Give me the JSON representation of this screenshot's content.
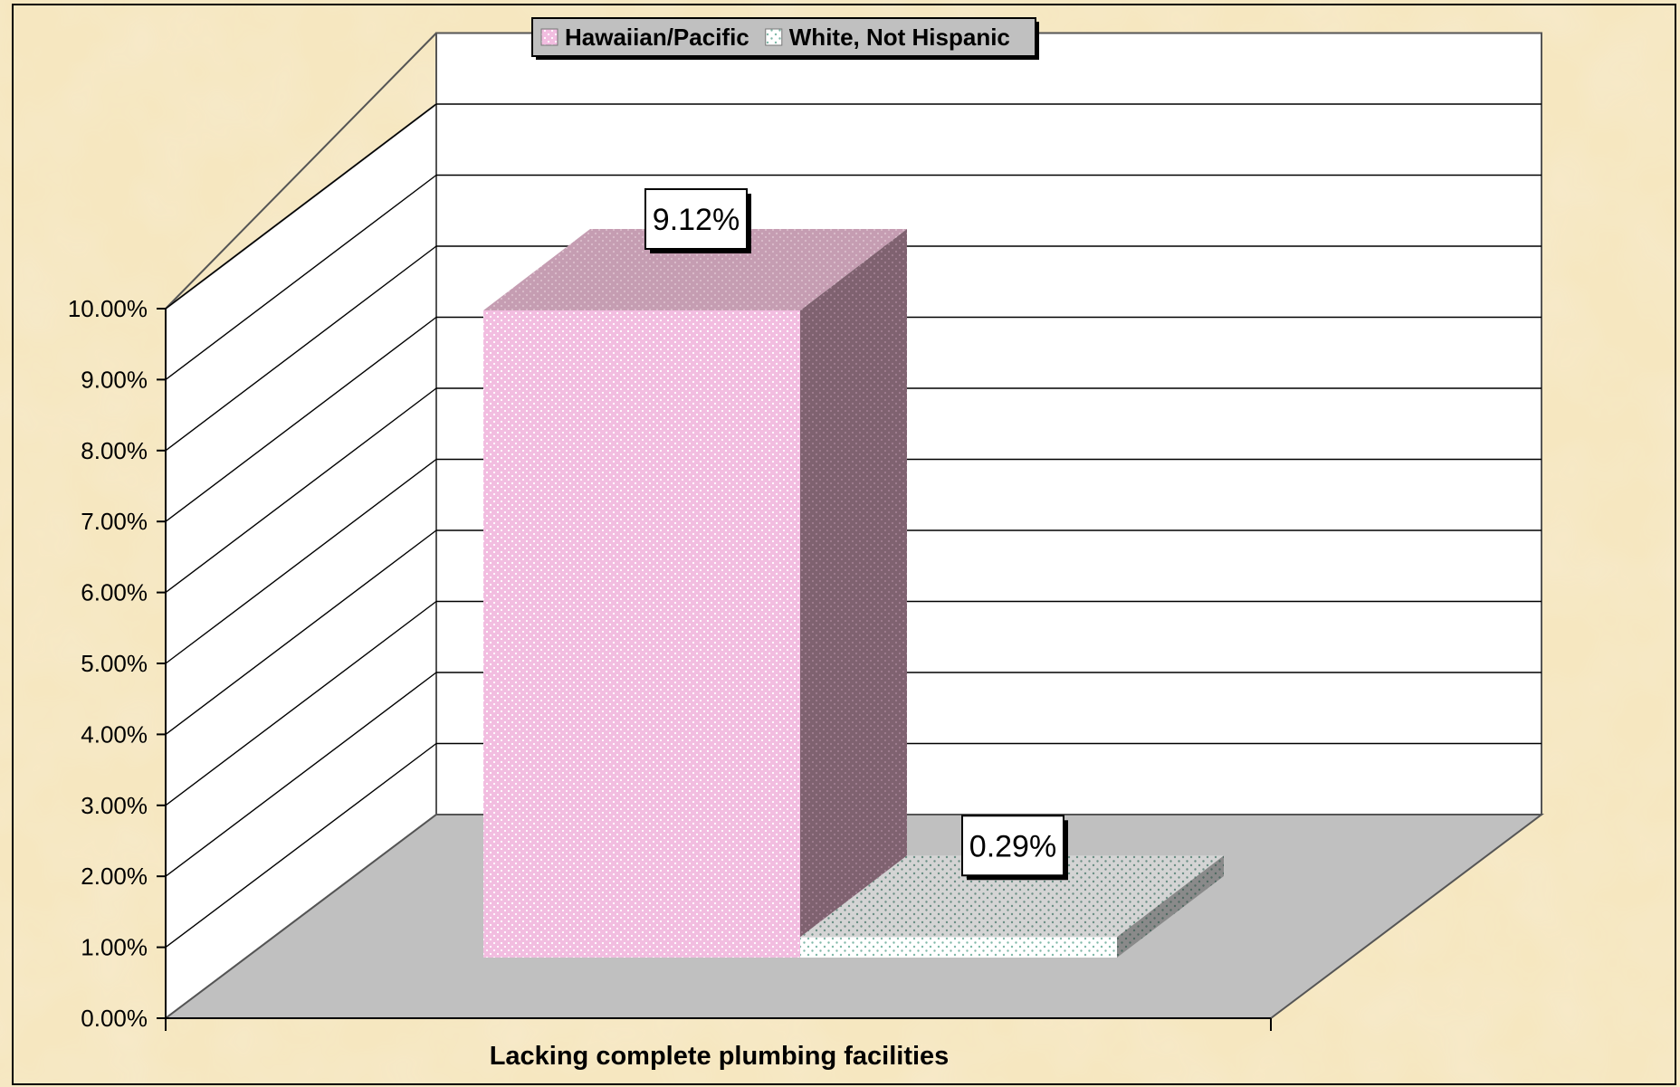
{
  "chart_data": {
    "type": "bar",
    "categories": [
      "Lacking complete plumbing facilities"
    ],
    "series": [
      {
        "name": "Hawaiian/Pacific",
        "values": [
          9.12
        ],
        "color": "#f2bde0",
        "label": "9.12%"
      },
      {
        "name": "White, Not Hispanic",
        "values": [
          0.29
        ],
        "color": "#ffffff",
        "label": "0.29%"
      }
    ],
    "ylim": [
      0,
      10
    ],
    "yticks": [
      "0.00%",
      "1.00%",
      "2.00%",
      "3.00%",
      "4.00%",
      "5.00%",
      "6.00%",
      "7.00%",
      "8.00%",
      "9.00%",
      "10.00%"
    ],
    "grid": true,
    "legend_position": "top",
    "three_d": true,
    "background_color": "#f6e7c0",
    "floor_color": "#c0c0c0"
  }
}
